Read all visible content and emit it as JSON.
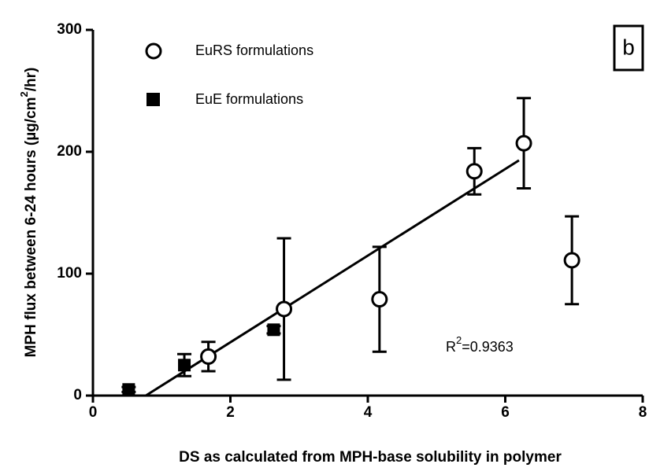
{
  "chart_data": {
    "type": "scatter",
    "xlabel": "DS as calculated from MPH-base solubility in polymer",
    "ylabel": {
      "base": "MPH flux between 6-24 hours (µg/cm",
      "sup": "2",
      "rest": "/hr)"
    },
    "panel_label": "b",
    "annotation": {
      "base": "R",
      "sup": "2",
      "rest": "=0.9363"
    },
    "xlim": [
      0,
      8
    ],
    "xticks": [
      0,
      2,
      4,
      6,
      8
    ],
    "ylim": [
      0,
      300
    ],
    "yticks": [
      0,
      100,
      200,
      300
    ],
    "legend": "top-left",
    "series": [
      {
        "name": "EuRS formulations",
        "marker": "open-circle",
        "color": "#000000",
        "x": [
          1.68,
          2.78,
          4.17,
          5.55,
          6.27,
          6.97
        ],
        "values": [
          32,
          71,
          79,
          184,
          207,
          111
        ],
        "errors": [
          12,
          58,
          43,
          19,
          37,
          36
        ]
      },
      {
        "name": "EuE formulations",
        "marker": "filled-square",
        "color": "#000000",
        "x": [
          0.52,
          1.33,
          2.63
        ],
        "values": [
          5,
          25,
          54
        ],
        "errors": [
          2,
          9,
          3
        ]
      }
    ],
    "fit": {
      "x": [
        0.77,
        6.2
      ],
      "values": [
        0,
        193
      ]
    }
  }
}
